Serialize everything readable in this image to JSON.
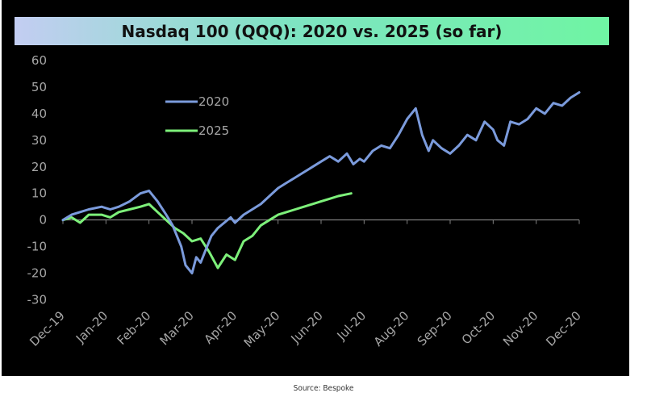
{
  "source": "Source: Bespoke",
  "chart_data": {
    "type": "line",
    "title": "Nasdaq 100 (QQQ): 2020 vs. 2025 (so far)",
    "ylim": [
      -30,
      60
    ],
    "yticks": [
      60,
      50,
      40,
      30,
      20,
      10,
      0,
      -10,
      -20,
      -30
    ],
    "xticks": [
      "Dec-19",
      "Jan-20",
      "Feb-20",
      "Mar-20",
      "Apr-20",
      "May-20",
      "Jun-20",
      "Jul-20",
      "Aug-20",
      "Sep-20",
      "Oct-20",
      "Nov-20",
      "Dec-20"
    ],
    "grid": false,
    "legend": "upper-left inside plot",
    "series": [
      {
        "name": "2020",
        "color": "#7b9bdc",
        "x": [
          0.0,
          0.2,
          0.4,
          0.6,
          0.9,
          1.1,
          1.3,
          1.55,
          1.8,
          2.0,
          2.2,
          2.4,
          2.55,
          2.75,
          2.85,
          3.0,
          3.1,
          3.2,
          3.3,
          3.45,
          3.6,
          3.75,
          3.9,
          4.0,
          4.2,
          4.4,
          4.6,
          4.8,
          5.0,
          5.2,
          5.4,
          5.6,
          5.8,
          6.0,
          6.2,
          6.4,
          6.6,
          6.75,
          6.9,
          7.0,
          7.2,
          7.4,
          7.6,
          7.8,
          8.0,
          8.2,
          8.35,
          8.5,
          8.6,
          8.8,
          9.0,
          9.2,
          9.4,
          9.6,
          9.8,
          10.0,
          10.1,
          10.25,
          10.4,
          10.6,
          10.8,
          11.0,
          11.2,
          11.4,
          11.6,
          11.8,
          12.0
        ],
        "y": [
          0,
          2,
          3,
          4,
          5,
          4,
          5,
          7,
          10,
          11,
          7,
          2,
          -2,
          -10,
          -17,
          -20,
          -14,
          -16,
          -12,
          -6,
          -3,
          -1,
          1,
          -1,
          2,
          4,
          6,
          9,
          12,
          14,
          16,
          18,
          20,
          22,
          24,
          22,
          25,
          21,
          23,
          22,
          26,
          28,
          27,
          32,
          38,
          42,
          32,
          26,
          30,
          27,
          25,
          28,
          32,
          30,
          37,
          34,
          30,
          28,
          37,
          36,
          38,
          42,
          40,
          44,
          43,
          46,
          48
        ]
      },
      {
        "name": "2025",
        "color": "#7df07a",
        "x": [
          0.0,
          0.2,
          0.4,
          0.6,
          0.9,
          1.1,
          1.3,
          1.55,
          1.8,
          2.0,
          2.2,
          2.4,
          2.6,
          2.8,
          3.0,
          3.2,
          3.4,
          3.6,
          3.8,
          4.0,
          4.2,
          4.4,
          4.6,
          4.8,
          5.0,
          5.2,
          5.4,
          5.6,
          5.8,
          6.0,
          6.2,
          6.4,
          6.7
        ],
        "y": [
          0,
          1,
          -1,
          2,
          2,
          1,
          3,
          4,
          5,
          6,
          3,
          0,
          -3,
          -5,
          -8,
          -7,
          -12,
          -18,
          -13,
          -15,
          -8,
          -6,
          -2,
          0,
          2,
          3,
          4,
          5,
          6,
          7,
          8,
          9,
          10
        ]
      }
    ]
  }
}
